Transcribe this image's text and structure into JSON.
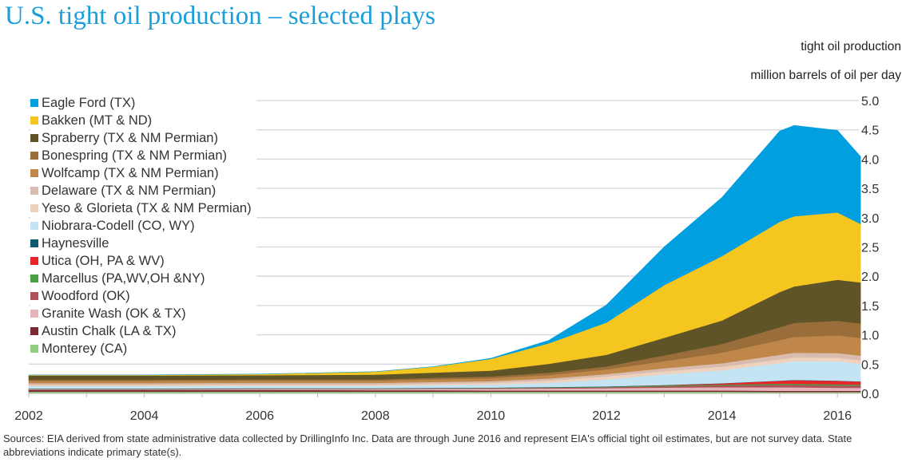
{
  "title": "U.S. tight oil production – selected plays",
  "unit_line1": "tight oil production",
  "unit_line2": "million barrels of oil per day",
  "sources": "Sources: EIA derived from state administrative data collected by DrillingInfo Inc. Data are through June 2016 and represent EIA's official tight oil estimates, but are not survey data. State abbreviations indicate primary state(s).",
  "chart_data": {
    "type": "area",
    "stacked": true,
    "ylabel": "tight oil production million barrels of oil per day",
    "ylim": [
      0,
      5.0
    ],
    "yticks": [
      "0.0",
      "0.5",
      "1.0",
      "1.5",
      "2.0",
      "2.5",
      "3.0",
      "3.5",
      "4.0",
      "4.5",
      "5.0"
    ],
    "xlim": [
      2002,
      2016.5
    ],
    "xticks": [
      "2002",
      "2004",
      "2006",
      "2008",
      "2010",
      "2012",
      "2014",
      "2016"
    ],
    "grid": true,
    "legend_position": "top-left",
    "x": [
      2002,
      2004,
      2006,
      2008,
      2009,
      2010,
      2011,
      2012,
      2013,
      2014,
      2015,
      2015.25,
      2016,
      2016.4
    ],
    "series": [
      {
        "name": "Monterey (CA)",
        "color": "#8fcf7e",
        "values": [
          0.03,
          0.03,
          0.03,
          0.03,
          0.03,
          0.03,
          0.03,
          0.03,
          0.03,
          0.03,
          0.025,
          0.025,
          0.025,
          0.025
        ]
      },
      {
        "name": "Austin Chalk (LA & TX)",
        "color": "#7a2a30",
        "values": [
          0.03,
          0.03,
          0.03,
          0.025,
          0.025,
          0.02,
          0.02,
          0.02,
          0.02,
          0.02,
          0.02,
          0.02,
          0.02,
          0.02
        ]
      },
      {
        "name": "Granite Wash (OK & TX)",
        "color": "#e6b3ba",
        "values": [
          0.01,
          0.01,
          0.015,
          0.02,
          0.025,
          0.03,
          0.035,
          0.04,
          0.05,
          0.055,
          0.06,
          0.06,
          0.05,
          0.05
        ]
      },
      {
        "name": "Woodford (OK)",
        "color": "#b0505a",
        "values": [
          0.005,
          0.005,
          0.005,
          0.005,
          0.005,
          0.01,
          0.01,
          0.015,
          0.02,
          0.03,
          0.04,
          0.04,
          0.04,
          0.035
        ]
      },
      {
        "name": "Marcellus (PA,WV,OH &NY)",
        "color": "#4a9e44",
        "values": [
          0.005,
          0.005,
          0.005,
          0.005,
          0.005,
          0.005,
          0.01,
          0.01,
          0.015,
          0.015,
          0.02,
          0.02,
          0.02,
          0.02
        ]
      },
      {
        "name": "Utica (OH, PA & WV)",
        "color": "#e8262a",
        "values": [
          0,
          0,
          0,
          0,
          0,
          0,
          0,
          0,
          0.005,
          0.02,
          0.05,
          0.06,
          0.06,
          0.05
        ]
      },
      {
        "name": "Haynesville",
        "color": "#0d5a72",
        "values": [
          0.005,
          0.005,
          0.005,
          0.005,
          0.005,
          0.005,
          0.005,
          0.005,
          0.005,
          0.005,
          0.005,
          0.005,
          0.005,
          0.005
        ]
      },
      {
        "name": "Niobrara-Codell (CO, WY)",
        "color": "#c4e4f3",
        "values": [
          0.04,
          0.04,
          0.04,
          0.04,
          0.045,
          0.05,
          0.07,
          0.12,
          0.18,
          0.22,
          0.3,
          0.32,
          0.33,
          0.3
        ]
      },
      {
        "name": "Yeso & Glorieta (TX & NM Permian)",
        "color": "#efd2bd",
        "values": [
          0.02,
          0.02,
          0.02,
          0.02,
          0.025,
          0.03,
          0.04,
          0.05,
          0.055,
          0.06,
          0.06,
          0.065,
          0.06,
          0.06
        ]
      },
      {
        "name": "Delaware (TX & NM Permian)",
        "color": "#d9bcb0",
        "values": [
          0.03,
          0.03,
          0.03,
          0.03,
          0.03,
          0.03,
          0.035,
          0.04,
          0.05,
          0.06,
          0.08,
          0.08,
          0.08,
          0.08
        ]
      },
      {
        "name": "Wolfcamp (TX & NM Permian)",
        "color": "#c0874a",
        "values": [
          0.04,
          0.04,
          0.04,
          0.04,
          0.045,
          0.05,
          0.06,
          0.08,
          0.12,
          0.18,
          0.25,
          0.27,
          0.3,
          0.3
        ]
      },
      {
        "name": "Bonespring (TX & NM Permian)",
        "color": "#9a6e3a",
        "values": [
          0.02,
          0.02,
          0.02,
          0.02,
          0.025,
          0.03,
          0.04,
          0.05,
          0.1,
          0.15,
          0.22,
          0.24,
          0.25,
          0.25
        ]
      },
      {
        "name": "Spraberry (TX & NM Permian)",
        "color": "#5e5427",
        "values": [
          0.07,
          0.07,
          0.07,
          0.08,
          0.09,
          0.1,
          0.15,
          0.2,
          0.3,
          0.4,
          0.6,
          0.62,
          0.7,
          0.7
        ]
      },
      {
        "name": "Bakken (MT & ND)",
        "color": "#f5c520",
        "values": [
          0.01,
          0.01,
          0.02,
          0.05,
          0.1,
          0.2,
          0.35,
          0.55,
          0.9,
          1.1,
          1.2,
          1.2,
          1.15,
          1.0
        ]
      },
      {
        "name": "Eagle Ford (TX)",
        "color": "#009fdf",
        "values": [
          0,
          0,
          0,
          0,
          0,
          0.01,
          0.05,
          0.3,
          0.65,
          1.0,
          1.55,
          1.55,
          1.4,
          1.15
        ]
      }
    ]
  }
}
